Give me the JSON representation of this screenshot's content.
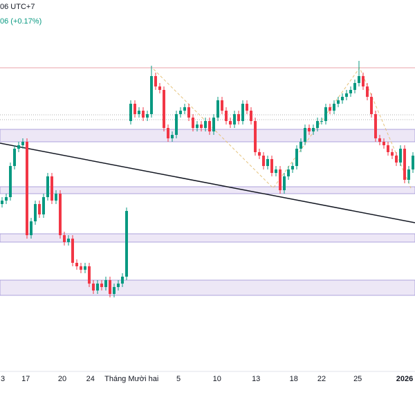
{
  "header": {
    "time": "06 UTC+7",
    "change": "06 (+0.17%)"
  },
  "chart_data": {
    "type": "candlestick",
    "up_color": "#089981",
    "down_color": "#f23645",
    "ylim": [
      0,
      600
    ],
    "xticks": [
      {
        "value": 0,
        "label": "3"
      },
      {
        "value": 5.7,
        "label": "17"
      },
      {
        "value": 14.5,
        "label": "20"
      },
      {
        "value": 21.3,
        "label": "24"
      },
      {
        "value": 31.2,
        "label": "Tháng Mười hai"
      },
      {
        "value": 42.5,
        "label": "5"
      },
      {
        "value": 51.8,
        "label": "10"
      },
      {
        "value": 61.2,
        "label": "13"
      },
      {
        "value": 70.3,
        "label": "18"
      },
      {
        "value": 77,
        "label": "22"
      },
      {
        "value": 85.7,
        "label": "25"
      },
      {
        "value": 97,
        "label": "2026"
      }
    ],
    "open": [
      305,
      310,
      315,
      360,
      385,
      390,
      395,
      260,
      280,
      305,
      290,
      315,
      345,
      310,
      320,
      260,
      250,
      255,
      220,
      215,
      210,
      215,
      190,
      180,
      190,
      185,
      195,
      175,
      185,
      190,
      200,
      425,
      450,
      435,
      440,
      430,
      435,
      490,
      475,
      470,
      415,
      400,
      405,
      435,
      440,
      445,
      430,
      415,
      420,
      415,
      425,
      410,
      430,
      455,
      440,
      425,
      420,
      435,
      425,
      450,
      440,
      425,
      380,
      375,
      360,
      370,
      350,
      355,
      325,
      345,
      355,
      360,
      385,
      395,
      415,
      410,
      415,
      425,
      425,
      445,
      440,
      450,
      455,
      460,
      465,
      470,
      480,
      490,
      475,
      460,
      435,
      400,
      395,
      390,
      380,
      375,
      365,
      385,
      340,
      355
    ],
    "high": [
      315,
      320,
      365,
      390,
      395,
      400,
      400,
      285,
      310,
      310,
      320,
      350,
      350,
      325,
      325,
      265,
      260,
      260,
      225,
      220,
      220,
      220,
      195,
      195,
      195,
      200,
      200,
      190,
      195,
      205,
      300,
      455,
      455,
      445,
      445,
      440,
      505,
      495,
      480,
      475,
      420,
      410,
      440,
      445,
      450,
      450,
      435,
      425,
      425,
      430,
      430,
      435,
      460,
      460,
      445,
      430,
      440,
      440,
      455,
      455,
      445,
      430,
      385,
      380,
      375,
      375,
      360,
      360,
      350,
      360,
      365,
      390,
      400,
      420,
      420,
      420,
      430,
      430,
      450,
      450,
      455,
      460,
      465,
      470,
      475,
      485,
      512,
      495,
      480,
      465,
      440,
      405,
      400,
      395,
      385,
      380,
      390,
      390,
      360,
      380
    ],
    "low": [
      300,
      305,
      310,
      355,
      380,
      385,
      255,
      255,
      275,
      285,
      285,
      310,
      305,
      305,
      255,
      245,
      245,
      215,
      210,
      205,
      205,
      185,
      175,
      175,
      180,
      180,
      170,
      170,
      180,
      185,
      195,
      420,
      430,
      430,
      425,
      425,
      430,
      470,
      465,
      410,
      395,
      395,
      400,
      430,
      435,
      425,
      410,
      410,
      410,
      410,
      405,
      405,
      425,
      435,
      420,
      415,
      415,
      420,
      420,
      435,
      420,
      375,
      370,
      355,
      355,
      345,
      345,
      320,
      320,
      340,
      350,
      355,
      380,
      390,
      405,
      405,
      410,
      420,
      420,
      435,
      435,
      445,
      450,
      455,
      460,
      465,
      475,
      470,
      455,
      430,
      395,
      390,
      385,
      375,
      370,
      360,
      360,
      335,
      335,
      350
    ],
    "close": [
      310,
      315,
      360,
      385,
      390,
      395,
      260,
      280,
      305,
      290,
      315,
      345,
      310,
      320,
      260,
      250,
      255,
      220,
      215,
      210,
      215,
      190,
      180,
      190,
      185,
      195,
      175,
      185,
      190,
      200,
      295,
      450,
      435,
      440,
      430,
      435,
      490,
      475,
      470,
      415,
      400,
      405,
      435,
      440,
      445,
      430,
      415,
      420,
      415,
      425,
      410,
      430,
      455,
      440,
      425,
      420,
      435,
      425,
      450,
      440,
      425,
      380,
      375,
      360,
      370,
      350,
      355,
      325,
      345,
      355,
      360,
      385,
      395,
      415,
      410,
      415,
      425,
      425,
      445,
      440,
      450,
      455,
      460,
      465,
      470,
      480,
      490,
      475,
      460,
      435,
      400,
      395,
      390,
      380,
      375,
      365,
      385,
      340,
      355,
      375
    ]
  }
}
